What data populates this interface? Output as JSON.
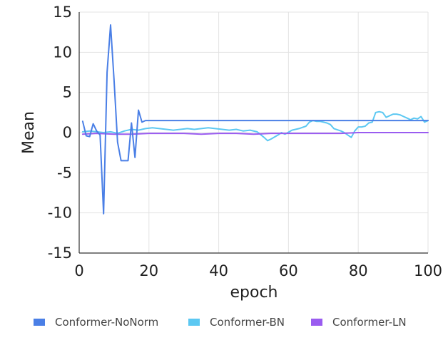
{
  "chart_data": {
    "type": "line",
    "xlabel": "epoch",
    "ylabel": "Mean",
    "xlim": [
      0,
      100
    ],
    "ylim": [
      -15,
      15
    ],
    "xticks": [
      0,
      20,
      40,
      60,
      80,
      100
    ],
    "yticks": [
      15,
      10,
      5,
      0,
      -5,
      -10,
      -15
    ],
    "grid": true,
    "legend": "bottom",
    "series": [
      {
        "name": "Conformer-NoNorm",
        "color": "#4a7fe6",
        "x": [
          1,
          2,
          3,
          4,
          5,
          6,
          7,
          8,
          9,
          10,
          11,
          12,
          13,
          14,
          15,
          16,
          17,
          18,
          19,
          20,
          30,
          40,
          50,
          60,
          70,
          80,
          90,
          99,
          100
        ],
        "y": [
          1.4,
          -0.4,
          -0.5,
          1.1,
          0.2,
          -0.3,
          -10.1,
          7.5,
          13.4,
          6.5,
          -1.2,
          -3.5,
          -3.5,
          -3.5,
          1.2,
          -3.1,
          2.8,
          1.3,
          1.5,
          1.5,
          1.5,
          1.5,
          1.5,
          1.5,
          1.5,
          1.5,
          1.5,
          1.5,
          1.5
        ]
      },
      {
        "name": "Conformer-BN",
        "color": "#5cc8f2",
        "x": [
          1,
          3,
          5,
          7,
          9,
          11,
          13,
          15,
          17,
          19,
          21,
          23,
          25,
          27,
          29,
          31,
          33,
          35,
          37,
          39,
          41,
          43,
          45,
          47,
          49,
          51,
          53,
          54,
          55,
          57,
          58,
          59,
          61,
          63,
          65,
          66,
          67,
          68,
          69,
          71,
          72,
          73,
          75,
          76,
          77,
          78,
          79,
          80,
          81,
          82,
          83,
          84,
          85,
          86,
          87,
          88,
          89,
          90,
          91,
          92,
          93,
          94,
          95,
          96,
          97,
          98,
          99,
          100
        ],
        "y": [
          0.1,
          0.2,
          0.1,
          0.0,
          0.1,
          -0.1,
          0.2,
          0.4,
          0.3,
          0.5,
          0.6,
          0.5,
          0.4,
          0.3,
          0.4,
          0.5,
          0.4,
          0.5,
          0.6,
          0.5,
          0.4,
          0.3,
          0.4,
          0.2,
          0.3,
          0.1,
          -0.6,
          -1.0,
          -0.8,
          -0.3,
          0.0,
          -0.2,
          0.3,
          0.5,
          0.8,
          1.3,
          1.5,
          1.4,
          1.4,
          1.2,
          1.0,
          0.5,
          0.2,
          0.0,
          -0.3,
          -0.6,
          0.2,
          0.7,
          0.7,
          0.8,
          1.2,
          1.3,
          2.5,
          2.6,
          2.5,
          1.9,
          2.1,
          2.3,
          2.3,
          2.2,
          2.0,
          1.8,
          1.6,
          1.8,
          1.7,
          2.0,
          1.3,
          1.5
        ]
      },
      {
        "name": "Conformer-LN",
        "color": "#9a5cf0",
        "x": [
          1,
          5,
          10,
          15,
          20,
          25,
          30,
          35,
          40,
          45,
          50,
          55,
          60,
          65,
          70,
          75,
          80,
          85,
          90,
          95,
          100
        ],
        "y": [
          -0.2,
          -0.1,
          -0.2,
          -0.2,
          -0.1,
          -0.1,
          -0.1,
          -0.2,
          -0.1,
          -0.1,
          -0.2,
          -0.1,
          -0.1,
          -0.1,
          -0.1,
          -0.1,
          0.0,
          0.0,
          0.0,
          0.0,
          0.0
        ]
      }
    ]
  }
}
